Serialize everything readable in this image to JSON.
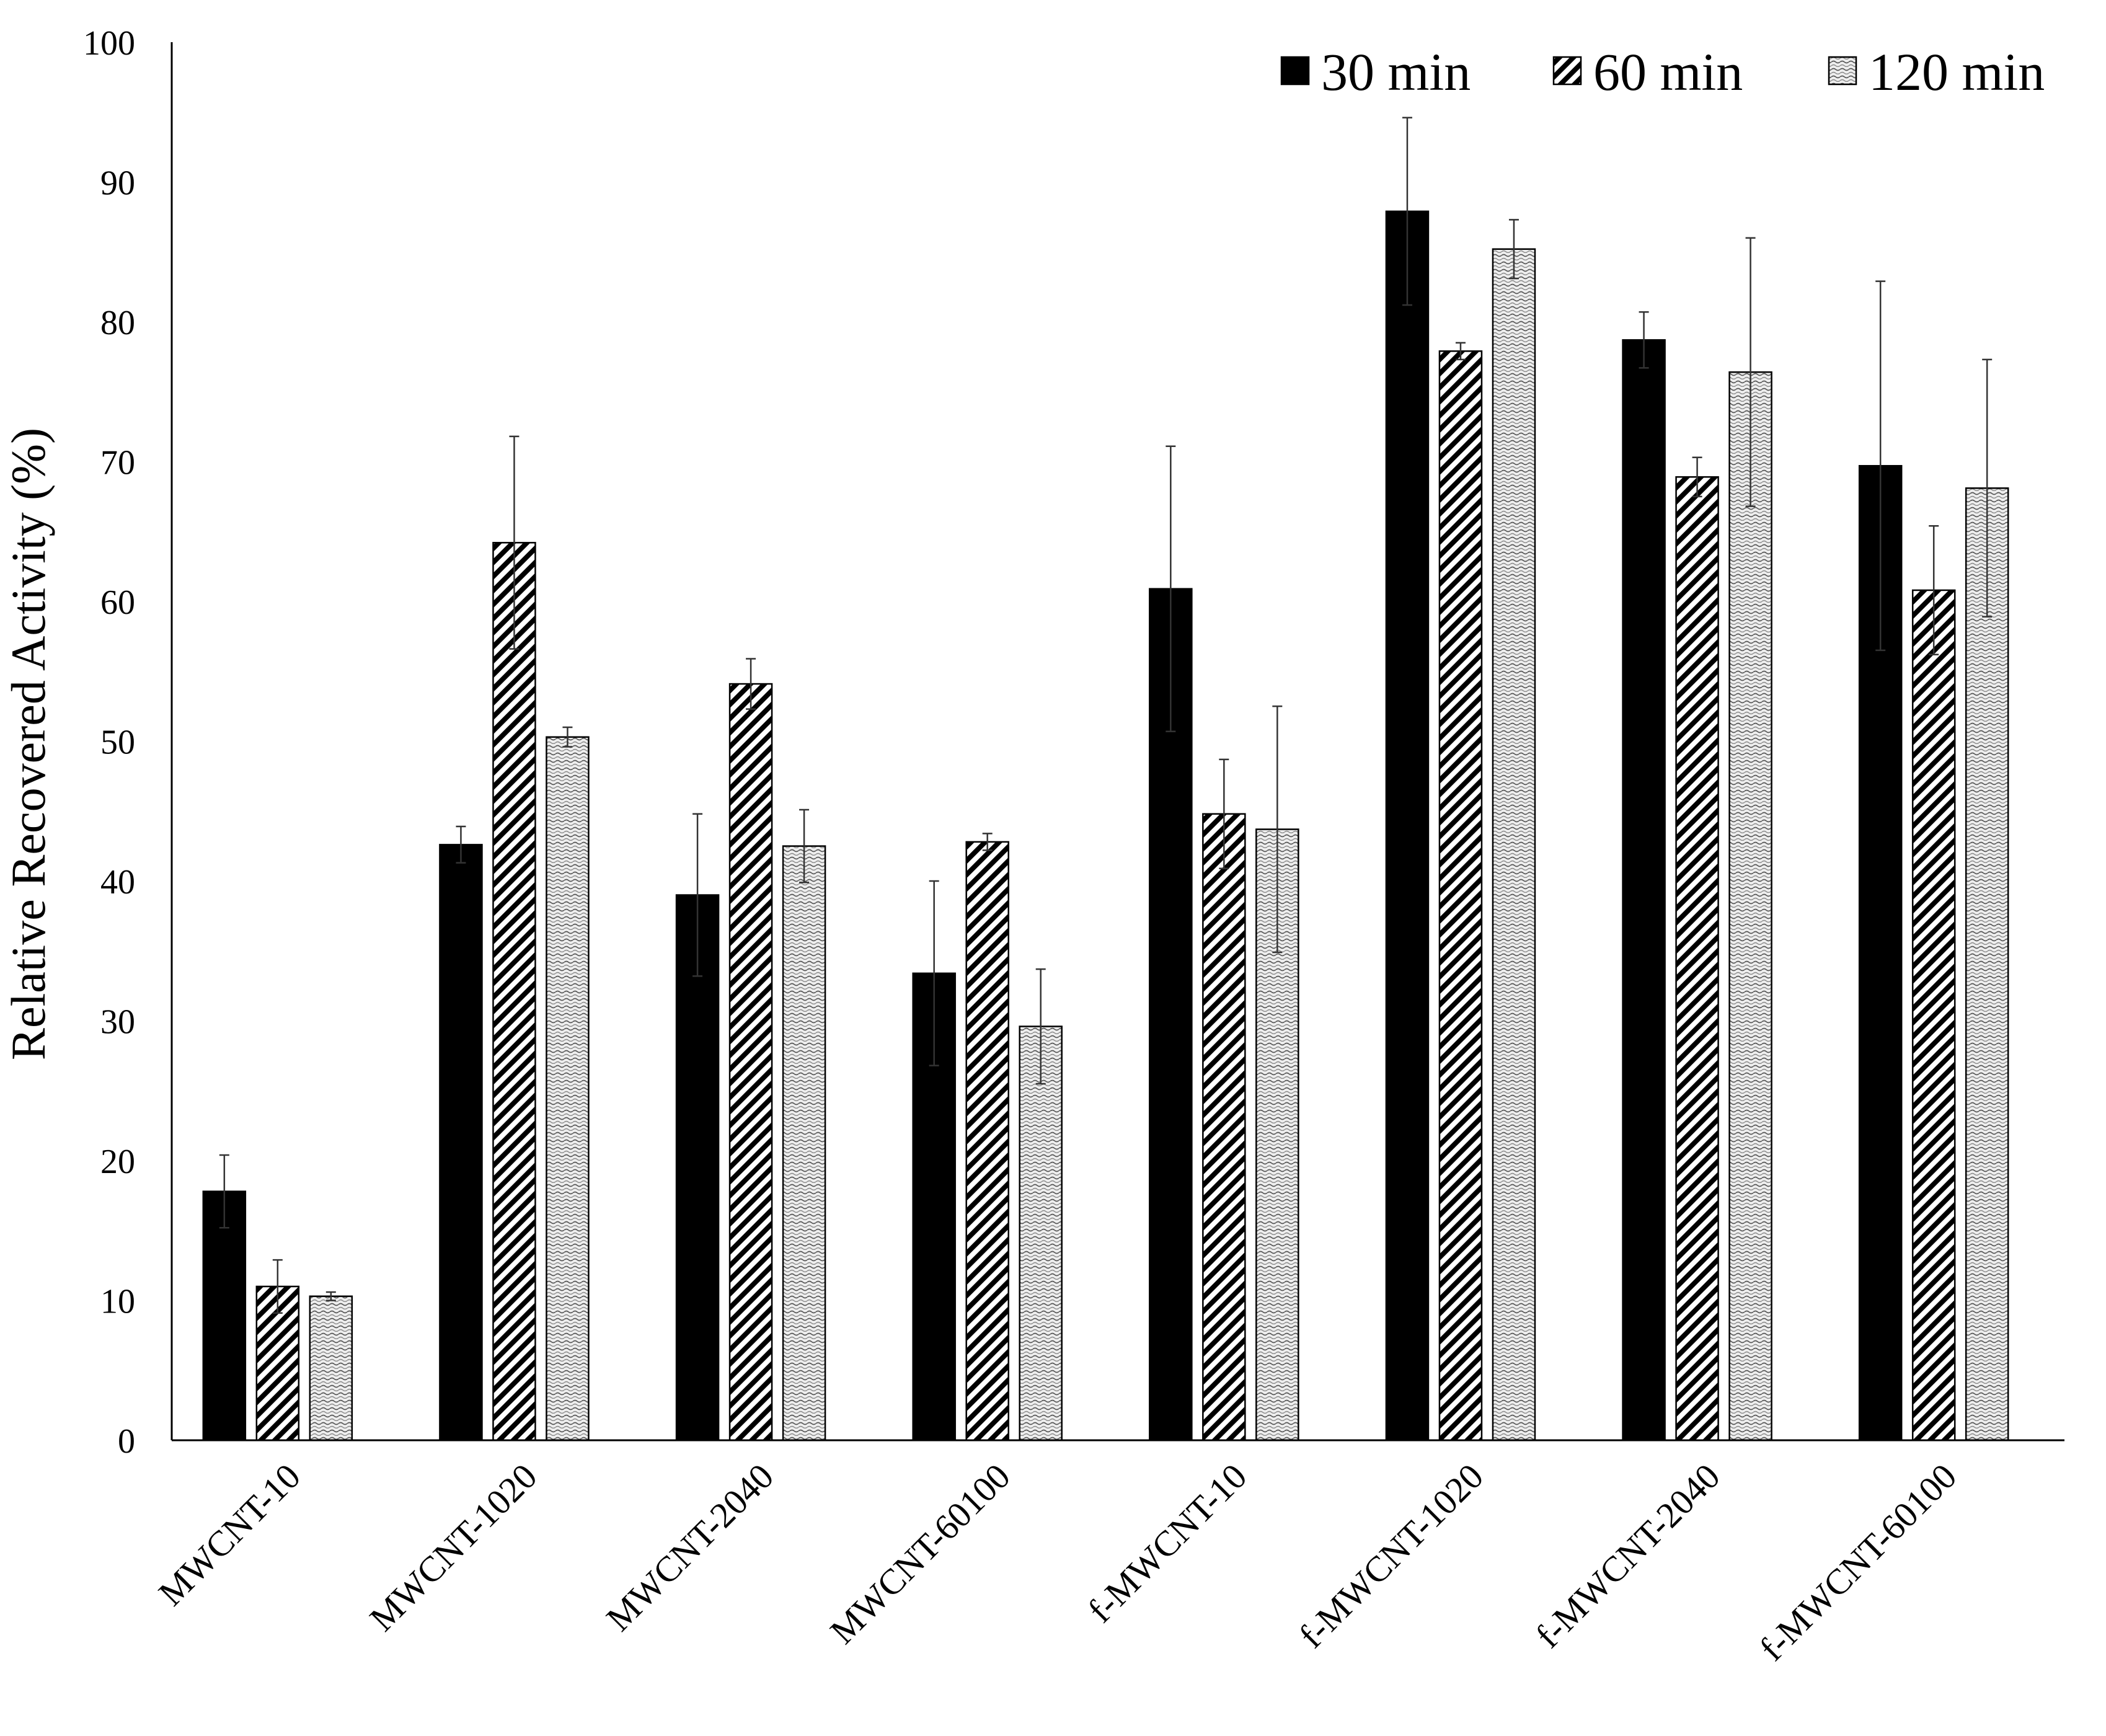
{
  "chart_data": {
    "type": "bar",
    "title": "",
    "xlabel": "",
    "ylabel": "Relative Recovered Activity (%)",
    "ylim": [
      0,
      100
    ],
    "yticks": [
      "0",
      "10",
      "20",
      "30",
      "40",
      "50",
      "60",
      "70",
      "80",
      "90",
      "100"
    ],
    "grid": false,
    "legend_position": "top-right",
    "categories": [
      "MWCNT-10",
      "MWCNT-1020",
      "MWCNT-2040",
      "MWCNT-60100",
      "f-MWCNT-10",
      "f-MWCNT-1020",
      "f-MWCNT-2040",
      "f-MWCNT-60100"
    ],
    "series": [
      {
        "name": "30 min",
        "pattern": "solid",
        "color": "#000000",
        "values": [
          17.8,
          42.6,
          39.0,
          33.4,
          60.9,
          87.9,
          78.7,
          69.7
        ],
        "errors": [
          2.6,
          1.3,
          5.8,
          6.6,
          10.2,
          6.7,
          2.0,
          13.2
        ]
      },
      {
        "name": "60 min",
        "pattern": "diagonal-hatch",
        "color": "#000000",
        "values": [
          11.0,
          64.2,
          54.1,
          42.8,
          44.8,
          77.9,
          68.9,
          60.8
        ],
        "errors": [
          1.9,
          7.6,
          1.8,
          0.6,
          3.9,
          0.6,
          1.4,
          4.6
        ]
      },
      {
        "name": "120 min",
        "pattern": "wavy-dots",
        "color": "#e6e6e6",
        "values": [
          10.3,
          50.3,
          42.5,
          29.6,
          43.7,
          85.2,
          76.4,
          68.1
        ],
        "errors": [
          0.3,
          0.7,
          2.6,
          4.1,
          8.8,
          2.1,
          9.6,
          9.2
        ]
      }
    ]
  }
}
